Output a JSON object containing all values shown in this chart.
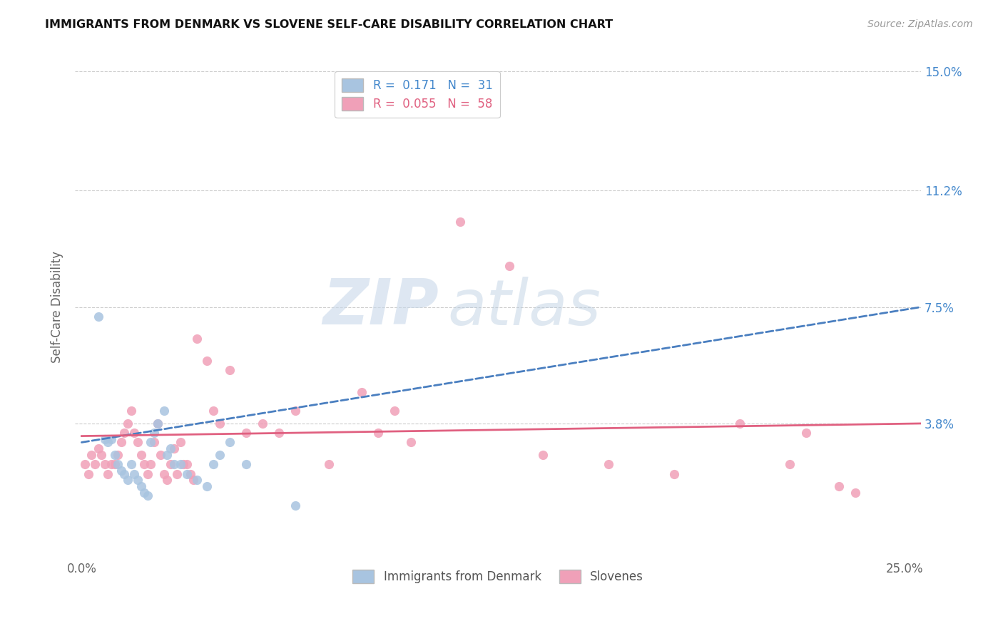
{
  "title": "IMMIGRANTS FROM DENMARK VS SLOVENE SELF-CARE DISABILITY CORRELATION CHART",
  "source": "Source: ZipAtlas.com",
  "ylabel": "Self-Care Disability",
  "xlim": [
    -0.002,
    0.255
  ],
  "ylim": [
    -0.005,
    0.155
  ],
  "yticks": [
    0.038,
    0.075,
    0.112,
    0.15
  ],
  "ytick_labels": [
    "3.8%",
    "7.5%",
    "11.2%",
    "15.0%"
  ],
  "xticks": [
    0.0,
    0.25
  ],
  "xtick_labels": [
    "0.0%",
    "25.0%"
  ],
  "blue_color": "#a8c4e0",
  "pink_color": "#f0a0b8",
  "trend_blue_color": "#4a7fc0",
  "trend_pink_color": "#e06080",
  "blue_scatter_x": [
    0.005,
    0.007,
    0.008,
    0.009,
    0.01,
    0.011,
    0.012,
    0.013,
    0.014,
    0.015,
    0.016,
    0.017,
    0.018,
    0.019,
    0.02,
    0.021,
    0.022,
    0.023,
    0.025,
    0.026,
    0.027,
    0.028,
    0.03,
    0.032,
    0.035,
    0.038,
    0.04,
    0.042,
    0.045,
    0.05,
    0.065
  ],
  "blue_scatter_y": [
    0.072,
    0.033,
    0.032,
    0.033,
    0.028,
    0.025,
    0.023,
    0.022,
    0.02,
    0.025,
    0.022,
    0.02,
    0.018,
    0.016,
    0.015,
    0.032,
    0.035,
    0.038,
    0.042,
    0.028,
    0.03,
    0.025,
    0.025,
    0.022,
    0.02,
    0.018,
    0.025,
    0.028,
    0.032,
    0.025,
    0.012
  ],
  "pink_scatter_x": [
    0.001,
    0.002,
    0.003,
    0.004,
    0.005,
    0.006,
    0.007,
    0.008,
    0.009,
    0.01,
    0.011,
    0.012,
    0.013,
    0.014,
    0.015,
    0.016,
    0.017,
    0.018,
    0.019,
    0.02,
    0.021,
    0.022,
    0.023,
    0.024,
    0.025,
    0.026,
    0.027,
    0.028,
    0.029,
    0.03,
    0.031,
    0.032,
    0.033,
    0.034,
    0.035,
    0.038,
    0.04,
    0.042,
    0.045,
    0.05,
    0.055,
    0.06,
    0.065,
    0.075,
    0.085,
    0.09,
    0.095,
    0.1,
    0.115,
    0.13,
    0.14,
    0.16,
    0.18,
    0.2,
    0.215,
    0.22,
    0.23,
    0.235
  ],
  "pink_scatter_y": [
    0.025,
    0.022,
    0.028,
    0.025,
    0.03,
    0.028,
    0.025,
    0.022,
    0.025,
    0.025,
    0.028,
    0.032,
    0.035,
    0.038,
    0.042,
    0.035,
    0.032,
    0.028,
    0.025,
    0.022,
    0.025,
    0.032,
    0.038,
    0.028,
    0.022,
    0.02,
    0.025,
    0.03,
    0.022,
    0.032,
    0.025,
    0.025,
    0.022,
    0.02,
    0.065,
    0.058,
    0.042,
    0.038,
    0.055,
    0.035,
    0.038,
    0.035,
    0.042,
    0.025,
    0.048,
    0.035,
    0.042,
    0.032,
    0.102,
    0.088,
    0.028,
    0.025,
    0.022,
    0.038,
    0.025,
    0.035,
    0.018,
    0.016
  ],
  "blue_trend_x0": 0.0,
  "blue_trend_x1": 0.255,
  "blue_trend_y0": 0.032,
  "blue_trend_y1": 0.075,
  "pink_trend_x0": 0.0,
  "pink_trend_x1": 0.255,
  "pink_trend_y0": 0.034,
  "pink_trend_y1": 0.038,
  "watermark_zip": "ZIP",
  "watermark_atlas": "atlas"
}
